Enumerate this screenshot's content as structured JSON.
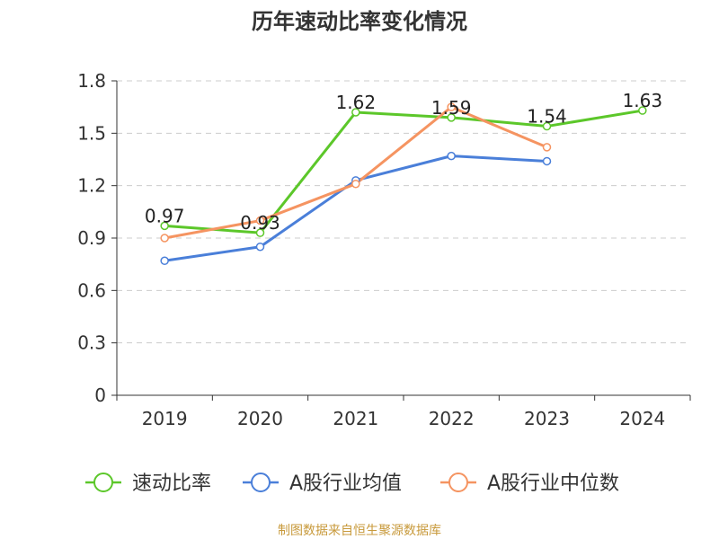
{
  "chart_data": {
    "type": "line",
    "title": "历年速动比率变化情况",
    "categories": [
      "2019",
      "2020",
      "2021",
      "2022",
      "2023",
      "2024"
    ],
    "ylim": [
      0,
      1.8
    ],
    "yticks": [
      "0",
      "0.3",
      "0.6",
      "0.9",
      "1.2",
      "1.5",
      "1.8"
    ],
    "grid": true,
    "legend_position": "bottom",
    "series": [
      {
        "name": "速动比率",
        "color": "#5cc72a",
        "values": [
          0.97,
          0.93,
          1.62,
          1.59,
          1.54,
          1.63
        ],
        "labels": [
          "0.97",
          "0.93",
          "1.62",
          "1.59",
          "1.54",
          "1.63"
        ]
      },
      {
        "name": "A股行业均值",
        "color": "#4a7fd9",
        "values": [
          0.77,
          0.85,
          1.23,
          1.37,
          1.34,
          null
        ],
        "labels": []
      },
      {
        "name": "A股行业中位数",
        "color": "#f59461",
        "values": [
          0.9,
          1.0,
          1.21,
          1.65,
          1.42,
          null
        ],
        "labels": []
      }
    ]
  },
  "footer": {
    "source": "制图数据来自恒生聚源数据库"
  }
}
